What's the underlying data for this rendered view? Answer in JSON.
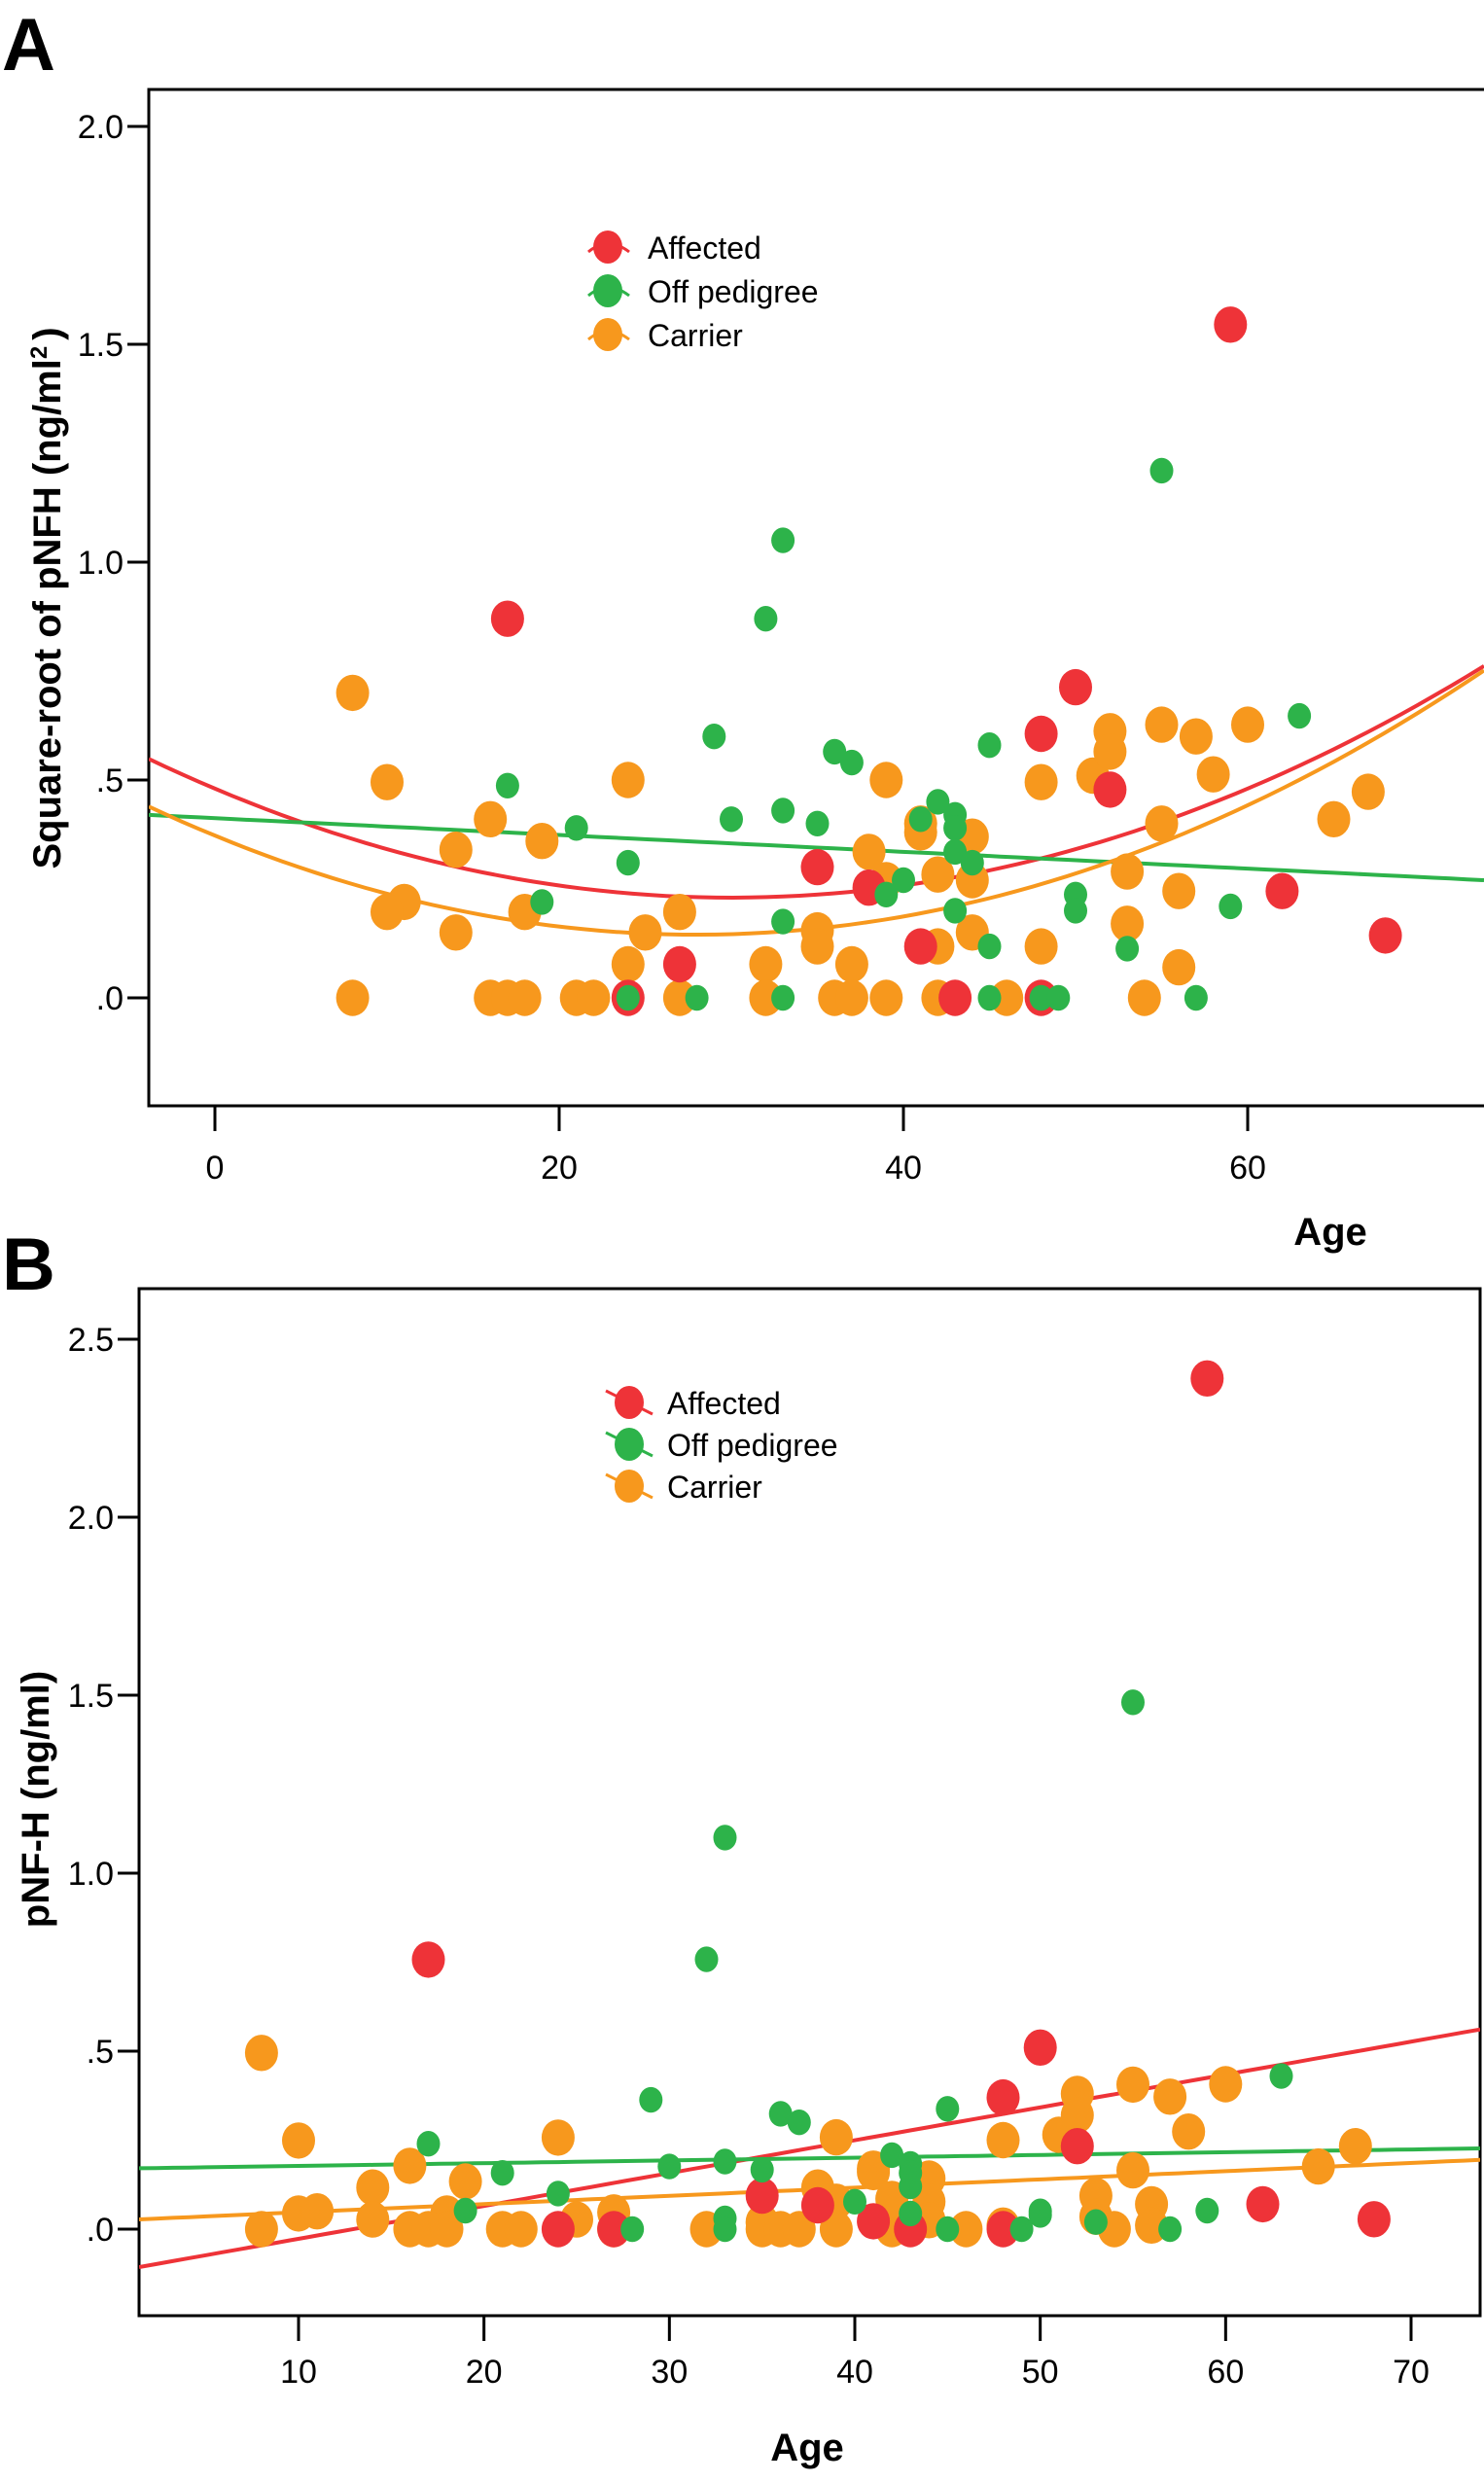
{
  "colors": {
    "affected": "#ee3338",
    "off_pedigree": "#2db34a",
    "carrier": "#f7981d",
    "axis": "#000000",
    "background": "#ffffff"
  },
  "chart_data": [
    {
      "panel": "A",
      "type": "scatter",
      "title": "",
      "xlabel": "Age",
      "ylabel": "Square-root of pNFH (ng/ml",
      "ylabel_superscript": "2",
      "ylabel_close": ")",
      "xlim": [
        -3.9,
        73.7
      ],
      "ylim": [
        -0.25,
        2.12
      ],
      "xticks": [
        0,
        20,
        40,
        60
      ],
      "xtick_labels": [
        "0",
        "20",
        "40",
        "60"
      ],
      "yticks": [
        0,
        0.5,
        1.0,
        1.5,
        2.0
      ],
      "ytick_labels": [
        ".0",
        ".5",
        "1.0",
        "1.5",
        "2.0"
      ],
      "grid": false,
      "legend_position": "top-center",
      "fit_type": "quadratic",
      "series": [
        {
          "name": "Affected",
          "key": "affected",
          "points": [
            [
              17,
              0.87
            ],
            [
              59,
              1.545
            ],
            [
              50,
              0.713
            ],
            [
              48,
              0.606
            ],
            [
              52,
              0.478
            ],
            [
              35,
              0.3
            ],
            [
              38,
              0.253
            ],
            [
              41,
              0.118
            ],
            [
              27,
              0.077
            ],
            [
              62,
              0.245
            ],
            [
              68,
              0.143
            ],
            [
              24,
              0.0
            ],
            [
              43,
              0.0
            ],
            [
              48,
              0.0
            ]
          ],
          "fit": {
            "vertex_x": 30,
            "vertex_y": 0.23,
            "a": 0.000278
          }
        },
        {
          "name": "Off pedigree",
          "key": "off_pedigree",
          "points": [
            [
              55,
              1.21
            ],
            [
              33,
              1.05
            ],
            [
              32,
              0.87
            ],
            [
              63,
              0.647
            ],
            [
              29,
              0.6
            ],
            [
              45,
              0.58
            ],
            [
              36,
              0.565
            ],
            [
              37,
              0.54
            ],
            [
              17,
              0.487
            ],
            [
              42,
              0.45
            ],
            [
              33,
              0.43
            ],
            [
              43,
              0.42
            ],
            [
              41,
              0.41
            ],
            [
              30,
              0.41
            ],
            [
              35,
              0.4
            ],
            [
              21,
              0.39
            ],
            [
              43,
              0.39
            ],
            [
              24,
              0.31
            ],
            [
              43,
              0.335
            ],
            [
              44,
              0.31
            ],
            [
              40,
              0.27
            ],
            [
              39,
              0.237
            ],
            [
              19,
              0.22
            ],
            [
              50,
              0.237
            ],
            [
              59,
              0.21
            ],
            [
              43,
              0.2
            ],
            [
              50,
              0.2
            ],
            [
              33,
              0.175
            ],
            [
              45,
              0.118
            ],
            [
              53,
              0.113
            ],
            [
              24,
              0.0
            ],
            [
              28,
              0.0
            ],
            [
              33,
              0.0
            ],
            [
              45,
              0.0
            ],
            [
              48,
              0.0
            ],
            [
              49,
              0.0
            ],
            [
              57,
              0.0
            ]
          ],
          "fit": {
            "intercept": 0.4124,
            "slope": -0.00193
          }
        },
        {
          "name": "Carrier",
          "key": "carrier",
          "points": [
            [
              8,
              0.7
            ],
            [
              10,
              0.495
            ],
            [
              24,
              0.5
            ],
            [
              39,
              0.5
            ],
            [
              48,
              0.495
            ],
            [
              16,
              0.41
            ],
            [
              19,
              0.36
            ],
            [
              14,
              0.34
            ],
            [
              11,
              0.22
            ],
            [
              10,
              0.197
            ],
            [
              18,
              0.197
            ],
            [
              27,
              0.197
            ],
            [
              14,
              0.15
            ],
            [
              25,
              0.15
            ],
            [
              24,
              0.077
            ],
            [
              32,
              0.077
            ],
            [
              37,
              0.077
            ],
            [
              38,
              0.335
            ],
            [
              41,
              0.4
            ],
            [
              41,
              0.38
            ],
            [
              44,
              0.37
            ],
            [
              39,
              0.27
            ],
            [
              42,
              0.283
            ],
            [
              44,
              0.27
            ],
            [
              35,
              0.155
            ],
            [
              35,
              0.118
            ],
            [
              44,
              0.15
            ],
            [
              42,
              0.118
            ],
            [
              48,
              0.118
            ],
            [
              51,
              0.51
            ],
            [
              52,
              0.612
            ],
            [
              52,
              0.565
            ],
            [
              55,
              0.627
            ],
            [
              57,
              0.6
            ],
            [
              60,
              0.627
            ],
            [
              58,
              0.513
            ],
            [
              55,
              0.4
            ],
            [
              67,
              0.473
            ],
            [
              65,
              0.41
            ],
            [
              53,
              0.29
            ],
            [
              56,
              0.245
            ],
            [
              53,
              0.17
            ],
            [
              56,
              0.07
            ],
            [
              8,
              0.0
            ],
            [
              16,
              0.0
            ],
            [
              17,
              0.0
            ],
            [
              18,
              0.0
            ],
            [
              21,
              0.0
            ],
            [
              22,
              0.0
            ],
            [
              27,
              0.0
            ],
            [
              32,
              0.0
            ],
            [
              36,
              0.0
            ],
            [
              37,
              0.0
            ],
            [
              39,
              0.0
            ],
            [
              42,
              0.0
            ],
            [
              46,
              0.0
            ],
            [
              54,
              0.0
            ]
          ],
          "fit": {
            "vertex_x": 28,
            "vertex_y": 0.145,
            "a": 0.00029
          }
        }
      ]
    },
    {
      "panel": "B",
      "type": "scatter",
      "title": "",
      "xlabel": "Age",
      "ylabel": "pNF-H (ng/ml)",
      "xlim": [
        1.4,
        73.8
      ],
      "ylim": [
        -0.24,
        2.64
      ],
      "xticks": [
        10,
        20,
        30,
        40,
        50,
        60,
        70
      ],
      "xtick_labels": [
        "10",
        "20",
        "30",
        "40",
        "50",
        "60",
        "70"
      ],
      "yticks": [
        0,
        0.5,
        1.0,
        1.5,
        2.0,
        2.5
      ],
      "ytick_labels": [
        ".0",
        ".5",
        "1.0",
        "1.5",
        "2.0",
        "2.5"
      ],
      "grid": false,
      "legend_position": "top-center",
      "fit_type": "linear",
      "series": [
        {
          "name": "Affected",
          "key": "affected",
          "points": [
            [
              59,
              2.39
            ],
            [
              17,
              0.757
            ],
            [
              50,
              0.51
            ],
            [
              48,
              0.37
            ],
            [
              52,
              0.233
            ],
            [
              35,
              0.094
            ],
            [
              38,
              0.067
            ],
            [
              41,
              0.022
            ],
            [
              62,
              0.07
            ],
            [
              68,
              0.028
            ],
            [
              24,
              0.0
            ],
            [
              27,
              0.0
            ],
            [
              43,
              0.0
            ],
            [
              48,
              0.0
            ]
          ],
          "fit": {
            "intercept": -0.1195,
            "slope": 0.00923
          }
        },
        {
          "name": "Off pedigree",
          "key": "off_pedigree",
          "points": [
            [
              55,
              1.48
            ],
            [
              33,
              1.1
            ],
            [
              32,
              0.758
            ],
            [
              63,
              0.43
            ],
            [
              29,
              0.363
            ],
            [
              45,
              0.338
            ],
            [
              36,
              0.324
            ],
            [
              37,
              0.3
            ],
            [
              17,
              0.24
            ],
            [
              42,
              0.208
            ],
            [
              33,
              0.19
            ],
            [
              43,
              0.183
            ],
            [
              30,
              0.176
            ],
            [
              35,
              0.167
            ],
            [
              21,
              0.158
            ],
            [
              43,
              0.158
            ],
            [
              43,
              0.12
            ],
            [
              24,
              0.1
            ],
            [
              40,
              0.077
            ],
            [
              19,
              0.052
            ],
            [
              59,
              0.052
            ],
            [
              50,
              0.05
            ],
            [
              43,
              0.044
            ],
            [
              50,
              0.04
            ],
            [
              33,
              0.03
            ],
            [
              53,
              0.02
            ],
            [
              28,
              0.0
            ],
            [
              33,
              0.0
            ],
            [
              45,
              0.0
            ],
            [
              49,
              0.0
            ],
            [
              57,
              0.0
            ]
          ],
          "fit": {
            "intercept": 0.1699,
            "slope": 0.00077
          }
        },
        {
          "name": "Carrier",
          "key": "carrier",
          "points": [
            [
              8,
              0.495
            ],
            [
              10,
              0.249
            ],
            [
              24,
              0.257
            ],
            [
              39,
              0.258
            ],
            [
              48,
              0.25
            ],
            [
              51,
              0.265
            ],
            [
              52,
              0.38
            ],
            [
              52,
              0.32
            ],
            [
              55,
              0.406
            ],
            [
              57,
              0.372
            ],
            [
              60,
              0.407
            ],
            [
              58,
              0.274
            ],
            [
              67,
              0.233
            ],
            [
              65,
              0.176
            ],
            [
              55,
              0.165
            ],
            [
              16,
              0.178
            ],
            [
              14,
              0.117
            ],
            [
              19,
              0.134
            ],
            [
              10,
              0.044
            ],
            [
              11,
              0.05
            ],
            [
              14,
              0.027
            ],
            [
              18,
              0.044
            ],
            [
              25,
              0.027
            ],
            [
              27,
              0.047
            ],
            [
              38,
              0.117
            ],
            [
              39,
              0.077
            ],
            [
              41,
              0.17
            ],
            [
              41,
              0.16
            ],
            [
              44,
              0.142
            ],
            [
              42,
              0.085
            ],
            [
              44,
              0.077
            ],
            [
              44,
              0.025
            ],
            [
              35,
              0.02
            ],
            [
              53,
              0.094
            ],
            [
              53,
              0.035
            ],
            [
              56,
              0.07
            ],
            [
              56,
              0.01
            ],
            [
              8,
              0.0
            ],
            [
              16,
              0.0
            ],
            [
              17,
              0.0
            ],
            [
              18,
              0.0
            ],
            [
              21,
              0.0
            ],
            [
              22,
              0.0
            ],
            [
              27,
              0.0
            ],
            [
              32,
              0.0
            ],
            [
              35,
              0.0
            ],
            [
              36,
              0.0
            ],
            [
              37,
              0.0
            ],
            [
              39,
              0.0
            ],
            [
              42,
              0.0
            ],
            [
              46,
              0.0
            ],
            [
              48,
              0.01
            ],
            [
              54,
              0.0
            ]
          ],
          "fit": {
            "intercept": 0.0242,
            "slope": 0.00231
          }
        }
      ]
    }
  ]
}
